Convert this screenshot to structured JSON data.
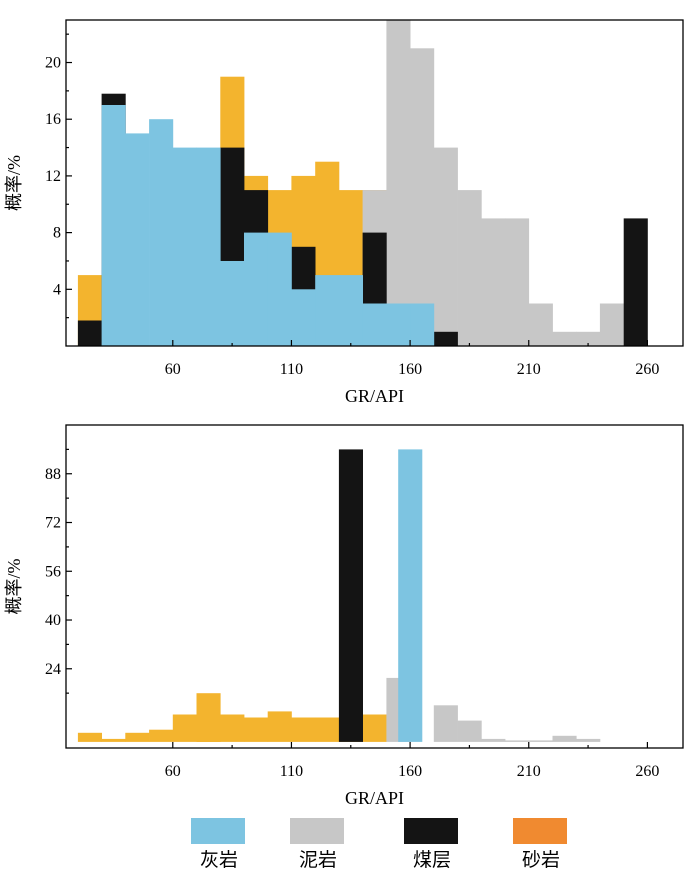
{
  "legend": [
    {
      "name": "灰岩",
      "color": "#7dc4e1"
    },
    {
      "name": "泥岩",
      "color": "#c7c7c7"
    },
    {
      "name": "煤层",
      "color": "#141414"
    },
    {
      "name": "砂岩",
      "color": "#f08a30"
    }
  ],
  "chart_data": [
    {
      "type": "bar",
      "stacking": "overlay",
      "xlabel": "GR/API",
      "ylabel": "概率/%",
      "xlim": [
        15,
        275
      ],
      "ylim": [
        0,
        23
      ],
      "xticks": [
        "60",
        "110",
        "160",
        "210",
        "260"
      ],
      "yticks": [
        "4",
        "8",
        "12",
        "16",
        "20"
      ],
      "bin_width": 10,
      "colors": {
        "sandstone": "#f3b42e",
        "mudstone": "#c7c7c7",
        "coal": "#141414",
        "limestone": "#7dc4e1"
      },
      "series": [
        {
          "name": "砂岩",
          "bins": [
            [
              20,
              5
            ],
            [
              80,
              19
            ],
            [
              90,
              12
            ],
            [
              100,
              11
            ],
            [
              110,
              12
            ],
            [
              120,
              13
            ],
            [
              130,
              11
            ],
            [
              140,
              11
            ]
          ]
        },
        {
          "name": "泥岩",
          "bins": [
            [
              140,
              11
            ],
            [
              150,
              23
            ],
            [
              160,
              21
            ],
            [
              170,
              14
            ],
            [
              180,
              11
            ],
            [
              190,
              9
            ],
            [
              200,
              9
            ],
            [
              210,
              3
            ],
            [
              220,
              1
            ],
            [
              230,
              1
            ],
            [
              240,
              3
            ]
          ]
        },
        {
          "name": "煤层",
          "bins": [
            [
              20,
              1.8
            ],
            [
              30,
              17.8
            ],
            [
              80,
              14
            ],
            [
              90,
              11
            ],
            [
              110,
              7
            ],
            [
              140,
              8
            ],
            [
              170,
              1
            ],
            [
              250,
              9
            ]
          ]
        },
        {
          "name": "灰岩",
          "bins": [
            [
              30,
              17
            ],
            [
              40,
              15
            ],
            [
              50,
              16
            ],
            [
              60,
              14
            ],
            [
              70,
              14
            ],
            [
              80,
              6
            ],
            [
              90,
              8
            ],
            [
              100,
              8
            ],
            [
              110,
              4
            ],
            [
              120,
              5
            ],
            [
              130,
              5
            ],
            [
              140,
              3
            ],
            [
              150,
              3
            ],
            [
              160,
              3
            ]
          ]
        }
      ]
    },
    {
      "type": "bar",
      "stacking": "overlay",
      "xlabel": "GR/API",
      "ylabel": "概率/%",
      "xlim": [
        15,
        275
      ],
      "ylim": [
        -2,
        104
      ],
      "xticks": [
        "60",
        "110",
        "160",
        "210",
        "260"
      ],
      "yticks": [
        "24",
        "40",
        "56",
        "72",
        "88"
      ],
      "bin_width": 10,
      "colors": {
        "sandstone": "#f3b42e",
        "mudstone": "#c7c7c7",
        "coal": "#141414",
        "limestone": "#7dc4e1"
      },
      "series": [
        {
          "name": "砂岩",
          "bins": [
            [
              20,
              3
            ],
            [
              30,
              1
            ],
            [
              40,
              3
            ],
            [
              50,
              4
            ],
            [
              60,
              9
            ],
            [
              70,
              16
            ],
            [
              80,
              9
            ],
            [
              90,
              8
            ],
            [
              100,
              10
            ],
            [
              110,
              8
            ],
            [
              120,
              8
            ],
            [
              130,
              8
            ],
            [
              140,
              9
            ]
          ]
        },
        {
          "name": "泥岩",
          "bins": [
            [
              150,
              21
            ],
            [
              170,
              12
            ],
            [
              180,
              7
            ],
            [
              190,
              1
            ],
            [
              200,
              0.5
            ],
            [
              210,
              0.5
            ],
            [
              220,
              2
            ],
            [
              230,
              1
            ]
          ]
        },
        {
          "name": "煤层",
          "bins": [
            [
              130,
              96
            ]
          ]
        },
        {
          "name": "灰岩",
          "bins": [
            [
              155,
              96
            ]
          ]
        }
      ]
    }
  ]
}
